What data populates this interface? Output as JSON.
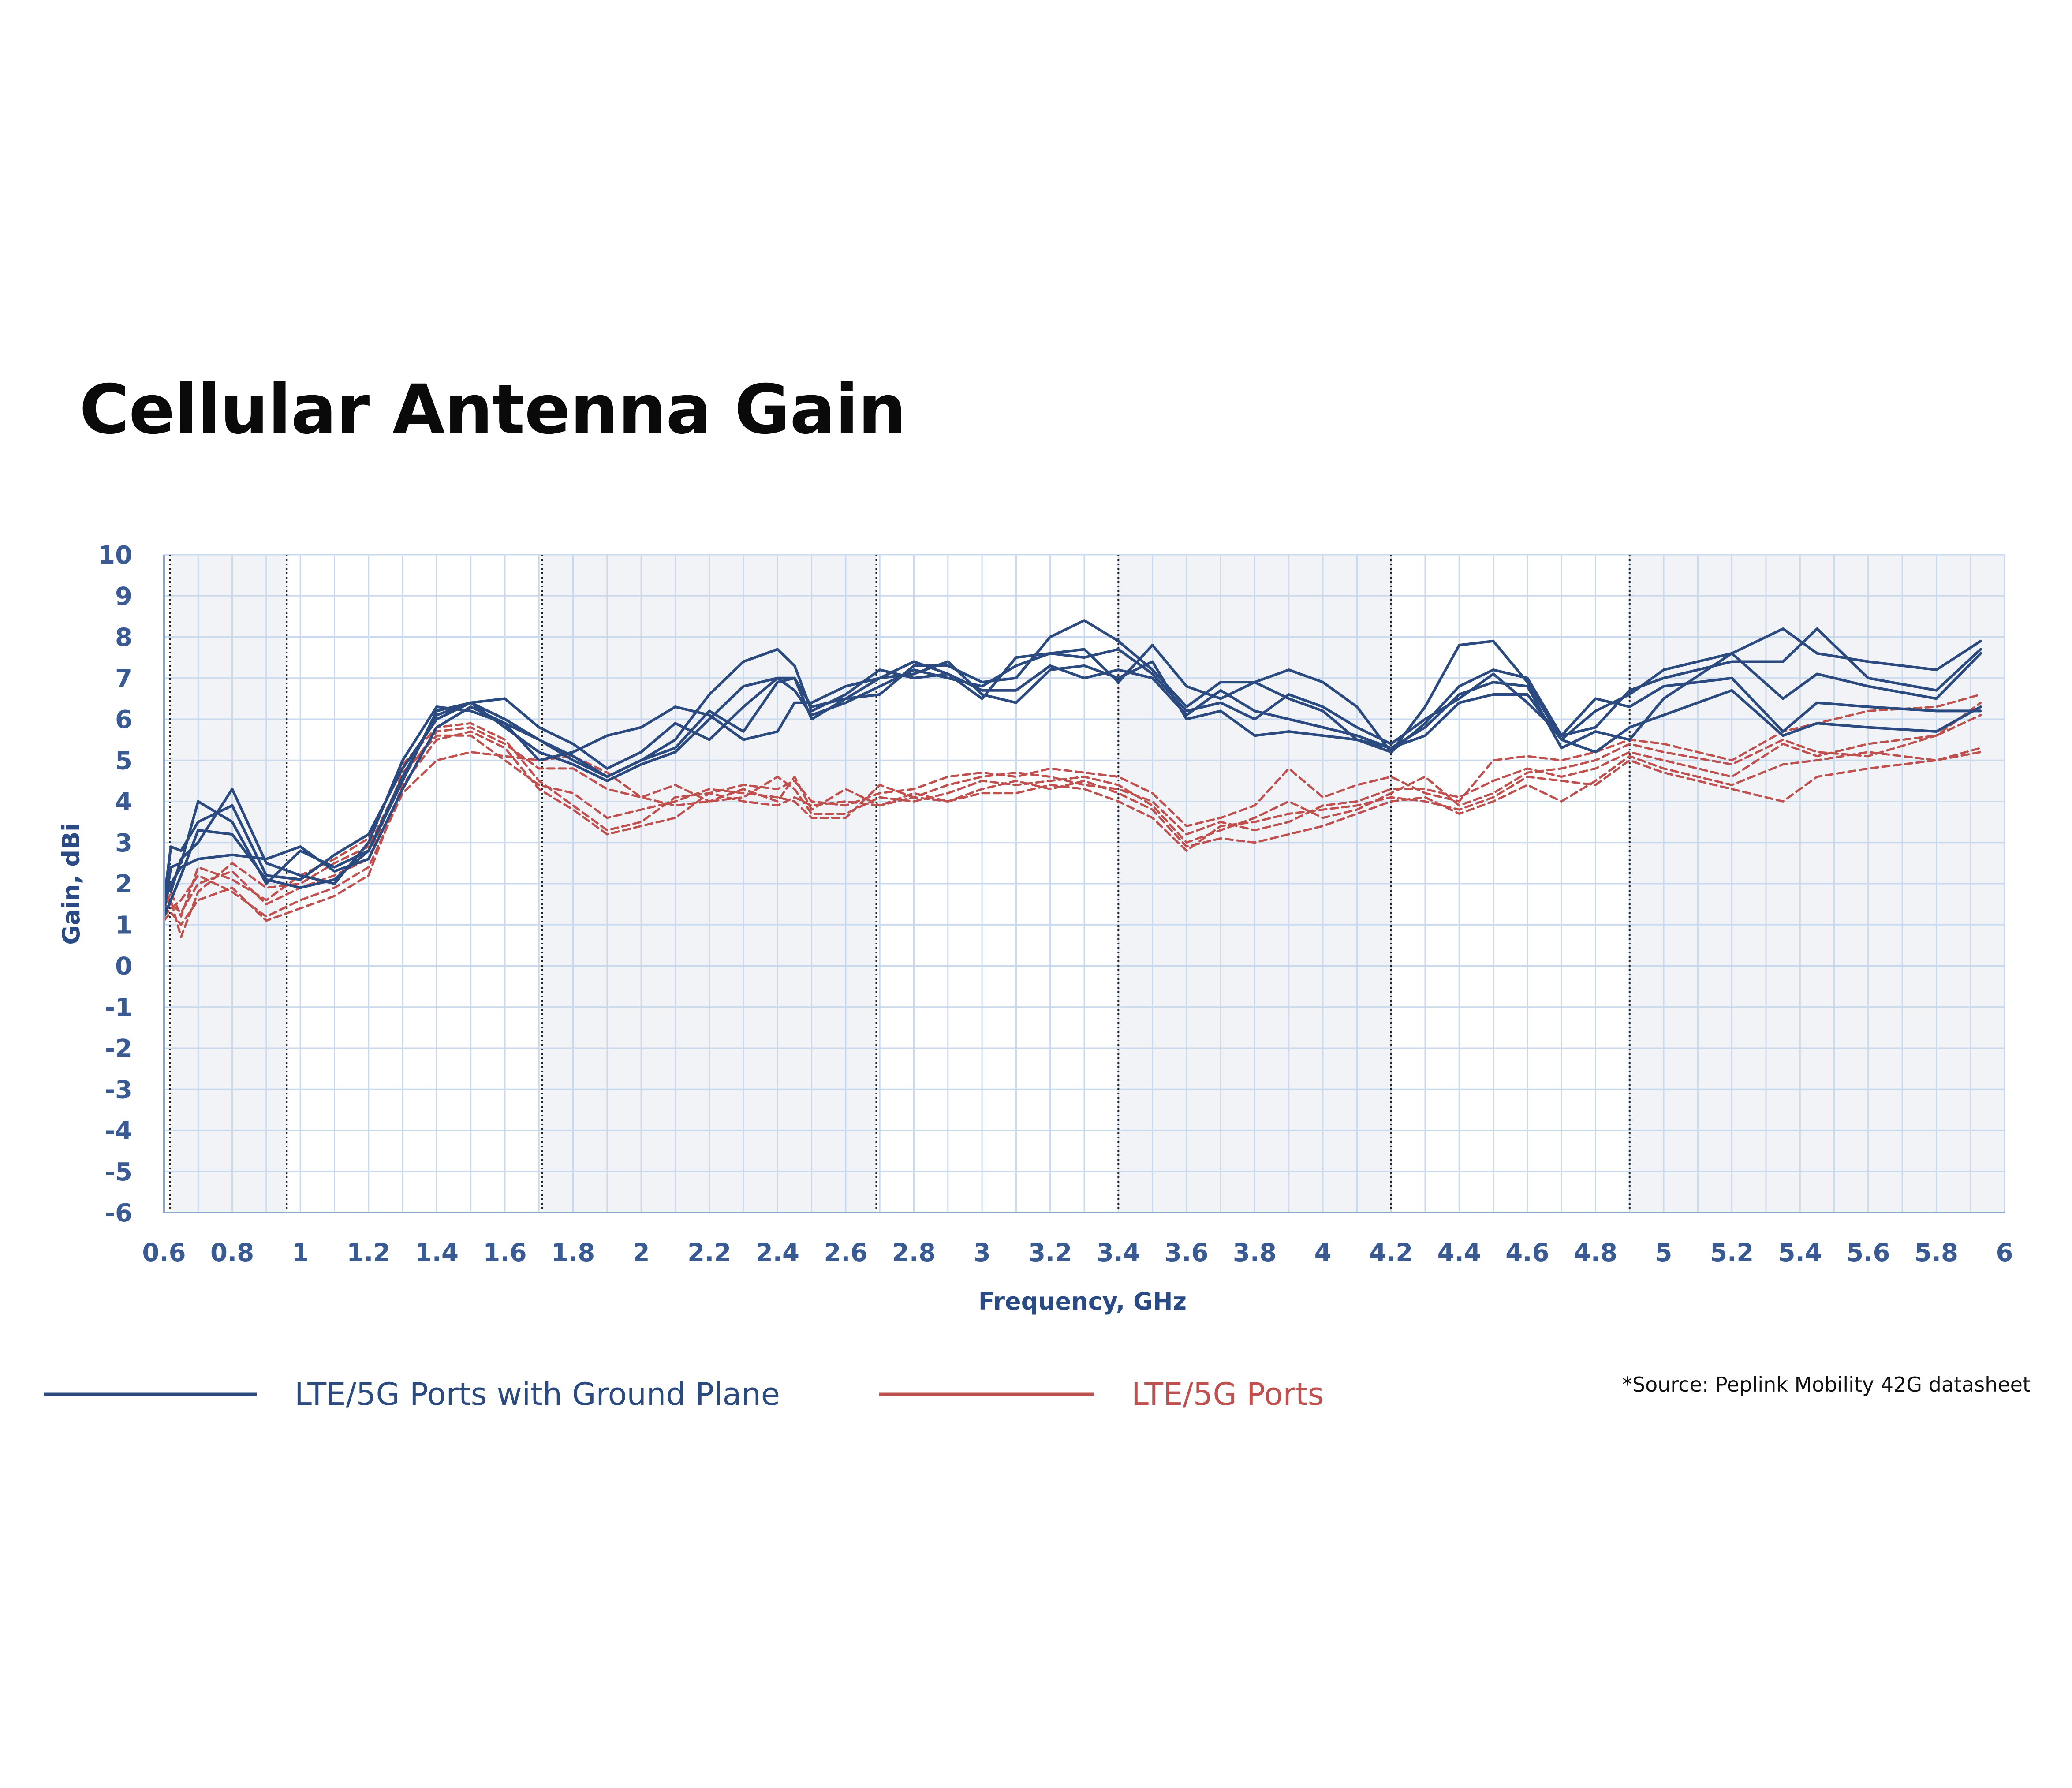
{
  "title": "Cellular Antenna Gain",
  "source_note": "*Source: Peplink Mobility 42G datasheet",
  "colors": {
    "ground_plane": "#2b4a80",
    "ports": "#c0504d",
    "grid": "#c9d9ee",
    "shade": "#f1f3f7",
    "tick_text": "#3a5a94"
  },
  "chart_data": {
    "type": "line",
    "title": "Cellular Antenna Gain",
    "xlabel": "Frequency, GHz",
    "ylabel": "Gain, dBi",
    "xlim": [
      0.6,
      6
    ],
    "ylim": [
      -6,
      10
    ],
    "x_ticks": [
      "0.6",
      "0.8",
      "1",
      "1.2",
      "1.4",
      "1.6",
      "1.8",
      "2",
      "2.2",
      "2.4",
      "2.6",
      "2.8",
      "3",
      "3.2",
      "3.4",
      "3.6",
      "3.8",
      "4",
      "4.2",
      "4.4",
      "4.6",
      "4.8",
      "5",
      "5.2",
      "5.4",
      "5.6",
      "5.8",
      "6"
    ],
    "y_ticks": [
      "10",
      "9",
      "8",
      "7",
      "6",
      "5",
      "4",
      "3",
      "2",
      "1",
      "0",
      "-1",
      "-2",
      "-3",
      "-4",
      "-5",
      "-6"
    ],
    "grid": true,
    "legend_position": "bottom",
    "band_edges_ghz": [
      0.617,
      0.96,
      1.71,
      2.69,
      3.4,
      4.2,
      4.9
    ],
    "shaded_bands_ghz": [
      [
        0.617,
        0.96
      ],
      [
        1.71,
        2.69
      ],
      [
        3.4,
        4.2
      ],
      [
        4.9,
        6
      ]
    ],
    "groups": [
      {
        "name": "LTE/5G Ports with Ground Plane",
        "style": "solid",
        "color": "#2b4a80"
      },
      {
        "name": "LTE/5G Ports",
        "style": "dashed",
        "color": "#c0504d"
      }
    ],
    "series": [
      {
        "group": "LTE/5G Ports with Ground Plane",
        "x": [
          0.6,
          0.62,
          0.65,
          0.7,
          0.8,
          0.9,
          1.0,
          1.1,
          1.2,
          1.3,
          1.4,
          1.5,
          1.6,
          1.7,
          1.8,
          1.9,
          2.0,
          2.1,
          2.2,
          2.3,
          2.4,
          2.45,
          2.5,
          2.6,
          2.7,
          2.8,
          2.9,
          3.0,
          3.1,
          3.2,
          3.3,
          3.4,
          3.5,
          3.6,
          3.7,
          3.8,
          3.9,
          4.0,
          4.1,
          4.2,
          4.3,
          4.4,
          4.5,
          4.6,
          4.7,
          4.8,
          4.9,
          5.0,
          5.2,
          5.35,
          5.45,
          5.6,
          5.8,
          5.93
        ],
        "y": [
          1.6,
          2.9,
          2.8,
          3.5,
          3.9,
          2.2,
          2.1,
          2.7,
          3.2,
          4.8,
          6.0,
          6.4,
          6.0,
          5.5,
          5.1,
          4.6,
          5.0,
          5.5,
          6.6,
          7.4,
          7.7,
          7.3,
          6.2,
          6.6,
          7.2,
          7.0,
          7.1,
          6.5,
          7.5,
          7.6,
          7.7,
          6.9,
          7.8,
          6.8,
          6.5,
          6.9,
          7.2,
          6.9,
          6.3,
          5.2,
          6.3,
          7.8,
          7.9,
          6.9,
          5.5,
          6.2,
          6.6,
          7.2,
          7.6,
          8.2,
          7.6,
          7.4,
          7.2,
          7.9
        ]
      },
      {
        "group": "LTE/5G Ports with Ground Plane",
        "x": [
          0.6,
          0.62,
          0.65,
          0.7,
          0.8,
          0.9,
          1.0,
          1.1,
          1.2,
          1.3,
          1.4,
          1.5,
          1.6,
          1.7,
          1.8,
          1.9,
          2.0,
          2.1,
          2.2,
          2.3,
          2.4,
          2.45,
          2.5,
          2.6,
          2.7,
          2.8,
          2.9,
          3.0,
          3.1,
          3.2,
          3.3,
          3.4,
          3.5,
          3.6,
          3.7,
          3.8,
          3.9,
          4.0,
          4.1,
          4.2,
          4.3,
          4.4,
          4.5,
          4.6,
          4.7,
          4.8,
          4.9,
          5.0,
          5.2,
          5.35,
          5.45,
          5.6,
          5.8,
          5.93
        ],
        "y": [
          1.3,
          2.4,
          2.5,
          4.0,
          3.5,
          2.0,
          2.8,
          2.4,
          2.8,
          4.5,
          6.2,
          6.4,
          6.5,
          5.8,
          5.4,
          4.8,
          5.2,
          5.9,
          5.5,
          6.3,
          7.0,
          7.0,
          6.0,
          6.5,
          6.6,
          7.3,
          7.3,
          6.9,
          7.0,
          8.0,
          8.4,
          7.9,
          7.2,
          6.3,
          6.9,
          6.9,
          6.5,
          6.2,
          5.5,
          5.2,
          5.9,
          6.8,
          7.2,
          7.0,
          5.6,
          5.8,
          6.7,
          7.0,
          7.4,
          7.4,
          8.2,
          7.0,
          6.7,
          7.7
        ]
      },
      {
        "group": "LTE/5G Ports with Ground Plane",
        "x": [
          0.6,
          0.62,
          0.65,
          0.7,
          0.8,
          0.9,
          1.0,
          1.1,
          1.2,
          1.3,
          1.4,
          1.5,
          1.6,
          1.7,
          1.8,
          1.9,
          2.0,
          2.1,
          2.2,
          2.3,
          2.4,
          2.45,
          2.5,
          2.6,
          2.7,
          2.8,
          2.9,
          3.0,
          3.1,
          3.2,
          3.3,
          3.4,
          3.5,
          3.6,
          3.7,
          3.8,
          3.9,
          4.0,
          4.1,
          4.2,
          4.3,
          4.4,
          4.5,
          4.6,
          4.7,
          4.8,
          4.9,
          5.0,
          5.2,
          5.35,
          5.45,
          5.6,
          5.8,
          5.93
        ],
        "y": [
          2.1,
          1.8,
          2.6,
          3.0,
          4.3,
          2.5,
          2.2,
          2.0,
          3.0,
          5.0,
          6.3,
          6.2,
          5.9,
          5.5,
          5.0,
          4.6,
          5.0,
          5.3,
          6.2,
          5.7,
          6.9,
          7.0,
          6.3,
          6.5,
          7.0,
          7.4,
          7.1,
          6.7,
          6.7,
          7.3,
          7.0,
          7.2,
          7.0,
          6.1,
          6.7,
          6.2,
          6.0,
          5.8,
          5.6,
          5.3,
          5.8,
          6.6,
          6.9,
          6.8,
          5.3,
          5.7,
          5.5,
          6.5,
          7.6,
          6.5,
          7.1,
          6.8,
          6.5,
          7.6
        ]
      },
      {
        "group": "LTE/5G Ports with Ground Plane",
        "x": [
          0.6,
          0.62,
          0.65,
          0.7,
          0.8,
          0.9,
          1.0,
          1.1,
          1.2,
          1.3,
          1.4,
          1.5,
          1.6,
          1.7,
          1.8,
          1.9,
          2.0,
          2.1,
          2.2,
          2.3,
          2.4,
          2.45,
          2.5,
          2.6,
          2.7,
          2.8,
          2.9,
          3.0,
          3.1,
          3.2,
          3.3,
          3.4,
          3.5,
          3.6,
          3.7,
          3.8,
          3.9,
          4.0,
          4.1,
          4.2,
          4.3,
          4.4,
          4.5,
          4.6,
          4.7,
          4.8,
          4.9,
          5.0,
          5.2,
          5.35,
          5.45,
          5.6,
          5.8,
          5.93
        ],
        "y": [
          1.5,
          2.0,
          2.4,
          2.6,
          2.7,
          2.6,
          2.9,
          2.3,
          2.6,
          4.3,
          5.8,
          6.3,
          5.9,
          5.0,
          5.2,
          5.6,
          5.8,
          6.3,
          6.1,
          5.5,
          5.7,
          6.4,
          6.4,
          6.8,
          7.0,
          7.1,
          7.4,
          6.6,
          6.4,
          7.2,
          7.3,
          7.0,
          7.4,
          6.0,
          6.2,
          5.6,
          5.7,
          5.6,
          5.5,
          5.3,
          5.6,
          6.4,
          6.6,
          6.6,
          5.5,
          5.2,
          5.8,
          6.1,
          6.7,
          5.6,
          5.9,
          5.8,
          5.7,
          6.3
        ]
      },
      {
        "group": "LTE/5G Ports with Ground Plane",
        "x": [
          0.6,
          0.62,
          0.65,
          0.7,
          0.8,
          0.9,
          1.0,
          1.1,
          1.2,
          1.3,
          1.4,
          1.5,
          1.6,
          1.7,
          1.8,
          1.9,
          2.0,
          2.1,
          2.2,
          2.3,
          2.4,
          2.45,
          2.5,
          2.6,
          2.7,
          2.8,
          2.9,
          3.0,
          3.1,
          3.2,
          3.3,
          3.4,
          3.5,
          3.6,
          3.7,
          3.8,
          3.9,
          4.0,
          4.1,
          4.2,
          4.3,
          4.4,
          4.5,
          4.6,
          4.7,
          4.8,
          4.9,
          5.0,
          5.2,
          5.35,
          5.45,
          5.6,
          5.8,
          5.93
        ],
        "y": [
          1.2,
          1.6,
          2.2,
          3.3,
          3.2,
          2.1,
          1.9,
          2.1,
          2.8,
          4.6,
          6.1,
          6.4,
          5.8,
          5.2,
          4.9,
          4.5,
          4.9,
          5.2,
          6.0,
          6.8,
          7.0,
          6.7,
          6.1,
          6.4,
          6.8,
          7.2,
          7.0,
          6.8,
          7.3,
          7.6,
          7.5,
          7.7,
          7.1,
          6.2,
          6.4,
          6.0,
          6.6,
          6.3,
          5.8,
          5.4,
          6.0,
          6.5,
          7.1,
          6.4,
          5.6,
          6.5,
          6.3,
          6.8,
          7.0,
          5.7,
          6.4,
          6.3,
          6.2,
          6.2
        ]
      },
      {
        "group": "LTE/5G Ports",
        "x": [
          0.6,
          0.62,
          0.65,
          0.7,
          0.8,
          0.9,
          1.0,
          1.1,
          1.2,
          1.3,
          1.4,
          1.5,
          1.6,
          1.7,
          1.8,
          1.9,
          2.0,
          2.1,
          2.2,
          2.3,
          2.4,
          2.45,
          2.5,
          2.6,
          2.7,
          2.8,
          2.9,
          3.0,
          3.1,
          3.2,
          3.3,
          3.4,
          3.5,
          3.6,
          3.7,
          3.8,
          3.9,
          4.0,
          4.1,
          4.2,
          4.3,
          4.4,
          4.5,
          4.6,
          4.7,
          4.8,
          4.9,
          5.0,
          5.2,
          5.35,
          5.45,
          5.6,
          5.8,
          5.93
        ],
        "y": [
          1.3,
          1.8,
          1.2,
          2.4,
          2.1,
          1.6,
          2.2,
          2.6,
          3.1,
          4.9,
          5.8,
          5.9,
          5.5,
          4.5,
          3.9,
          3.3,
          3.5,
          4.1,
          4.2,
          4.4,
          4.3,
          4.5,
          4.0,
          3.9,
          4.2,
          4.3,
          4.6,
          4.7,
          4.6,
          4.8,
          4.7,
          4.6,
          4.2,
          3.4,
          3.6,
          3.9,
          4.8,
          4.1,
          4.4,
          4.6,
          4.2,
          4.0,
          5.0,
          5.1,
          5.0,
          5.2,
          5.5,
          5.4,
          5.0,
          5.7,
          5.9,
          6.2,
          6.3,
          6.6
        ]
      },
      {
        "group": "LTE/5G Ports",
        "x": [
          0.6,
          0.62,
          0.65,
          0.7,
          0.8,
          0.9,
          1.0,
          1.1,
          1.2,
          1.3,
          1.4,
          1.5,
          1.6,
          1.7,
          1.8,
          1.9,
          2.0,
          2.1,
          2.2,
          2.3,
          2.4,
          2.45,
          2.5,
          2.6,
          2.7,
          2.8,
          2.9,
          3.0,
          3.1,
          3.2,
          3.3,
          3.4,
          3.5,
          3.6,
          3.7,
          3.8,
          3.9,
          4.0,
          4.1,
          4.2,
          4.3,
          4.4,
          4.5,
          4.6,
          4.7,
          4.8,
          4.9,
          5.0,
          5.2,
          5.35,
          5.45,
          5.6,
          5.8,
          5.93
        ],
        "y": [
          1.5,
          1.6,
          0.7,
          1.8,
          2.5,
          1.9,
          2.0,
          2.5,
          2.9,
          4.6,
          5.7,
          5.8,
          5.4,
          4.8,
          4.8,
          4.3,
          4.1,
          3.9,
          4.0,
          4.1,
          4.6,
          4.3,
          3.7,
          3.7,
          4.1,
          4.0,
          4.2,
          4.5,
          4.4,
          4.5,
          4.6,
          4.4,
          3.9,
          3.0,
          3.3,
          3.6,
          4.0,
          3.6,
          3.8,
          4.2,
          4.6,
          3.9,
          4.2,
          4.7,
          4.8,
          5.0,
          5.4,
          5.2,
          4.9,
          5.5,
          5.2,
          5.1,
          5.6,
          6.4
        ]
      },
      {
        "group": "LTE/5G Ports",
        "x": [
          0.6,
          0.62,
          0.65,
          0.7,
          0.8,
          0.9,
          1.0,
          1.1,
          1.2,
          1.3,
          1.4,
          1.5,
          1.6,
          1.7,
          1.8,
          1.9,
          2.0,
          2.1,
          2.2,
          2.3,
          2.4,
          2.45,
          2.5,
          2.6,
          2.7,
          2.8,
          2.9,
          3.0,
          3.1,
          3.2,
          3.3,
          3.4,
          3.5,
          3.6,
          3.7,
          3.8,
          3.9,
          4.0,
          4.1,
          4.2,
          4.3,
          4.4,
          4.5,
          4.6,
          4.7,
          4.8,
          4.9,
          5.0,
          5.2,
          5.35,
          5.45,
          5.6,
          5.8,
          5.93
        ],
        "y": [
          1.2,
          1.4,
          1.6,
          2.2,
          1.8,
          1.2,
          1.6,
          1.9,
          2.4,
          4.2,
          5.0,
          5.2,
          5.1,
          5.0,
          5.1,
          4.7,
          4.1,
          4.4,
          4.0,
          4.3,
          4.0,
          4.6,
          3.8,
          4.3,
          3.9,
          4.1,
          4.0,
          4.3,
          4.5,
          4.3,
          4.5,
          4.2,
          3.8,
          2.9,
          3.1,
          3.0,
          3.2,
          3.4,
          3.7,
          4.0,
          4.1,
          3.7,
          4.0,
          4.4,
          4.0,
          4.5,
          5.1,
          4.8,
          4.4,
          4.9,
          5.0,
          5.2,
          5.0,
          5.3
        ]
      },
      {
        "group": "LTE/5G Ports",
        "x": [
          0.6,
          0.62,
          0.65,
          0.7,
          0.8,
          0.9,
          1.0,
          1.1,
          1.2,
          1.3,
          1.4,
          1.5,
          1.6,
          1.7,
          1.8,
          1.9,
          2.0,
          2.1,
          2.2,
          2.3,
          2.4,
          2.45,
          2.5,
          2.6,
          2.7,
          2.8,
          2.9,
          3.0,
          3.1,
          3.2,
          3.3,
          3.4,
          3.5,
          3.6,
          3.7,
          3.8,
          3.9,
          4.0,
          4.1,
          4.2,
          4.3,
          4.4,
          4.5,
          4.6,
          4.7,
          4.8,
          4.9,
          5.0,
          5.2,
          5.35,
          5.45,
          5.6,
          5.8,
          5.93
        ],
        "y": [
          1.1,
          1.3,
          1.0,
          1.6,
          1.9,
          1.1,
          1.4,
          1.7,
          2.2,
          4.4,
          5.5,
          5.7,
          5.3,
          4.3,
          3.8,
          3.2,
          3.4,
          3.6,
          4.2,
          4.0,
          3.9,
          4.1,
          3.9,
          4.0,
          3.9,
          4.2,
          4.0,
          4.2,
          4.2,
          4.4,
          4.3,
          4.0,
          3.6,
          2.8,
          3.4,
          3.5,
          3.7,
          3.8,
          3.9,
          4.1,
          4.0,
          3.8,
          4.1,
          4.6,
          4.5,
          4.4,
          5.0,
          4.7,
          4.3,
          4.0,
          4.6,
          4.8,
          5.0,
          5.2
        ]
      },
      {
        "group": "LTE/5G Ports",
        "x": [
          0.6,
          0.62,
          0.65,
          0.7,
          0.8,
          0.9,
          1.0,
          1.1,
          1.2,
          1.3,
          1.4,
          1.5,
          1.6,
          1.7,
          1.8,
          1.9,
          2.0,
          2.1,
          2.2,
          2.3,
          2.4,
          2.45,
          2.5,
          2.6,
          2.7,
          2.8,
          2.9,
          3.0,
          3.1,
          3.2,
          3.3,
          3.4,
          3.5,
          3.6,
          3.7,
          3.8,
          3.9,
          4.0,
          4.1,
          4.2,
          4.3,
          4.4,
          4.5,
          4.6,
          4.7,
          4.8,
          4.9,
          5.0,
          5.2,
          5.35,
          5.45,
          5.6,
          5.8,
          5.93
        ],
        "y": [
          1.4,
          1.5,
          1.3,
          2.0,
          2.3,
          1.5,
          1.9,
          2.2,
          2.6,
          4.7,
          5.6,
          5.6,
          5.0,
          4.4,
          4.2,
          3.6,
          3.8,
          4.0,
          4.3,
          4.2,
          4.1,
          4.0,
          3.6,
          3.6,
          4.4,
          4.1,
          4.4,
          4.6,
          4.7,
          4.6,
          4.4,
          4.3,
          4.0,
          3.2,
          3.5,
          3.3,
          3.5,
          3.9,
          4.0,
          4.3,
          4.3,
          4.1,
          4.5,
          4.8,
          4.6,
          4.8,
          5.2,
          5.0,
          4.6,
          5.4,
          5.1,
          5.4,
          5.6,
          6.1
        ]
      }
    ]
  },
  "legend": [
    {
      "label": "LTE/5G Ports with Ground Plane",
      "color": "#2b4a80"
    },
    {
      "label": "LTE/5G Ports",
      "color": "#c0504d"
    }
  ]
}
